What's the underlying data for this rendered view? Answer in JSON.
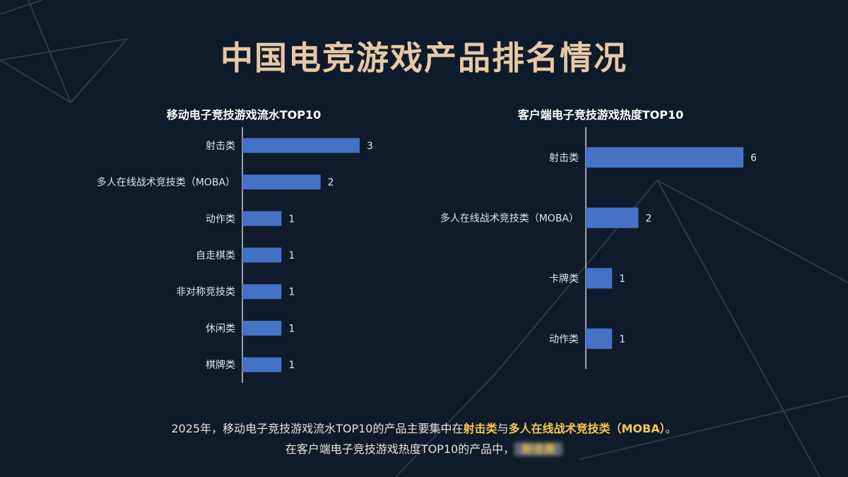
{
  "page": {
    "title": "中国电竞游戏产品排名情况"
  },
  "colors": {
    "bar": "#4472c4",
    "title": "#e6c9a4",
    "highlight": "#f5c84c",
    "background": "#0f1a2b"
  },
  "chart_data": [
    {
      "type": "bar",
      "orientation": "horizontal",
      "title": "移动电子竞技游戏流水TOP10",
      "categories": [
        "射击类",
        "多人在线战术竞技类（MOBA）",
        "动作类",
        "自走棋类",
        "非对称竞技类",
        "休闲类",
        "棋牌类"
      ],
      "values": [
        3,
        2,
        1,
        1,
        1,
        1,
        1
      ],
      "xlim": [
        0,
        3
      ]
    },
    {
      "type": "bar",
      "orientation": "horizontal",
      "title": "客户端电子竞技游戏热度TOP10",
      "categories": [
        "射击类",
        "多人在线战术竞技类（MOBA）",
        "卡牌类",
        "动作类"
      ],
      "values": [
        6,
        2,
        1,
        1
      ],
      "xlim": [
        0,
        6
      ]
    }
  ],
  "footer": {
    "line1_prefix": "2025年，移动电子竞技游戏流水TOP10的产品主要集中在",
    "line1_hl1": "射击类",
    "line1_mid": "与",
    "line1_hl2": "多人在线战术竞技类（MOBA）",
    "line1_suffix": "。",
    "line2_prefix": "在客户端电子竞技游戏热度TOP10的产品中，",
    "line2_hl": "射击类"
  }
}
